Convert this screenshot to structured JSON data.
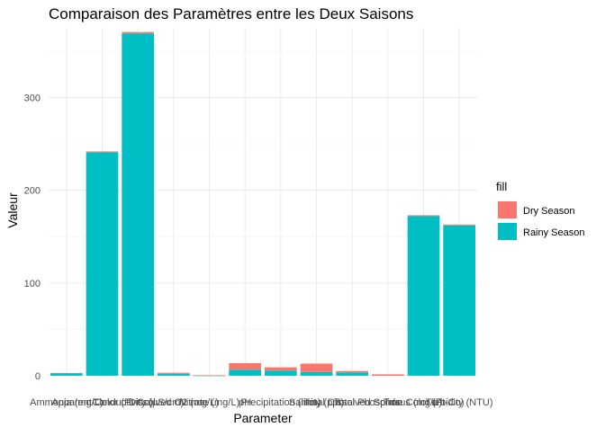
{
  "chart_data": {
    "type": "bar",
    "title": "Comparaison des Paramètres entre les Deux Saisons",
    "xlabel": "Parameter",
    "ylabel": "Valeur",
    "ylim": [
      -2,
      375
    ],
    "yticks": [
      0,
      100,
      200,
      300
    ],
    "grid": true,
    "legend": {
      "title": "fill",
      "position": "right"
    },
    "categories": [
      "Ammonia (mg/L)",
      "Apparent Color (Pt-Co)",
      "Conductivity (µS/cm)",
      "Dissolved O2 (mg/L)",
      "Nitrate (mg/L)",
      "pH",
      "Precipitation (mm)",
      "Salinity (ppt)",
      "Total Dissolved Solids",
      "Total Phosphorus (mg/L)",
      "True Color (Pt-Co)",
      "Turbidity (NTU)"
    ],
    "series": [
      {
        "name": "Dry Season",
        "color": "#F8766D",
        "values": [
          0.5,
          0.8,
          1.5,
          1.2,
          0.3,
          7.0,
          3.5,
          9.0,
          1.5,
          1.5,
          1.0,
          1.0
        ]
      },
      {
        "name": "Rainy Season",
        "color": "#00BFC4",
        "values": [
          2.5,
          241,
          369,
          2.0,
          0.2,
          6.5,
          5.5,
          4.0,
          3.5,
          0.0,
          172,
          162
        ]
      }
    ]
  }
}
